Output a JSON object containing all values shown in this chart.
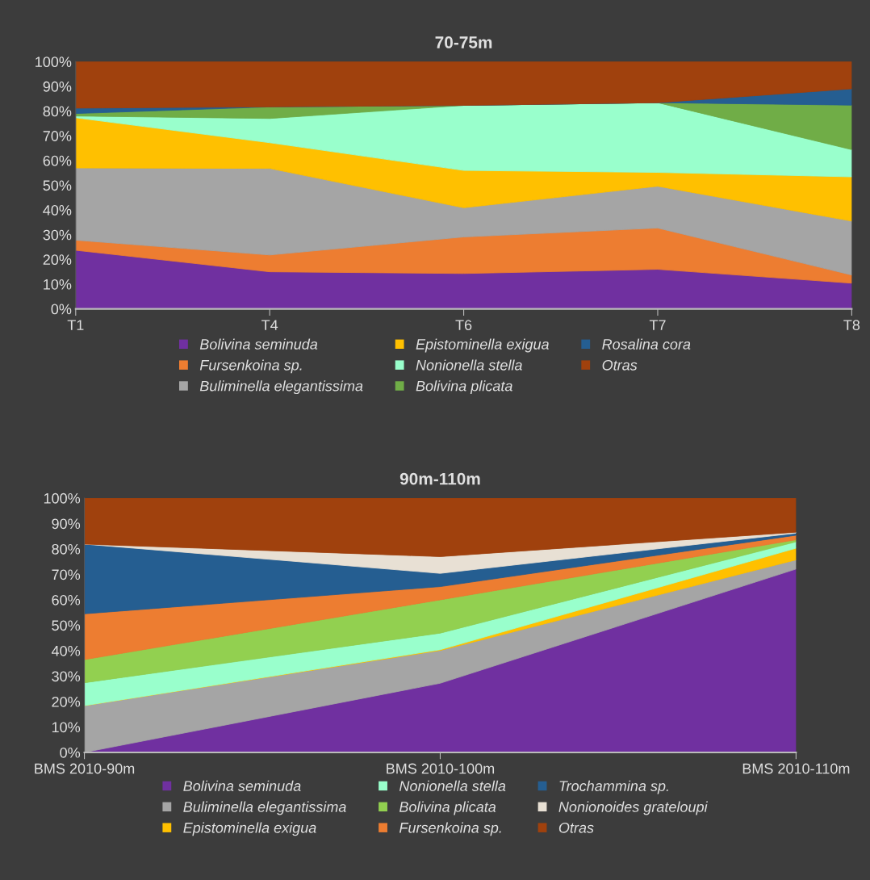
{
  "chart_data": [
    {
      "type": "area",
      "stacked": true,
      "title": "70-75m",
      "categories": [
        "T1",
        "T4",
        "T6",
        "T7",
        "T8"
      ],
      "ylim": [
        0,
        100
      ],
      "yticks": [
        {
          "value": 0,
          "label": "0%"
        },
        {
          "value": 10,
          "label": "10%"
        },
        {
          "value": 20,
          "label": "20%"
        },
        {
          "value": 30,
          "label": "30%"
        },
        {
          "value": 40,
          "label": "40%"
        },
        {
          "value": 50,
          "label": "50%"
        },
        {
          "value": 60,
          "label": "60%"
        },
        {
          "value": 70,
          "label": "70%"
        },
        {
          "value": 80,
          "label": "80%"
        },
        {
          "value": 90,
          "label": "90%"
        },
        {
          "value": 100,
          "label": "100%"
        }
      ],
      "legend": "bottom",
      "grid": false,
      "series": [
        {
          "name": "Bolivina seminuda",
          "color": "#7030a0",
          "values": [
            23.7,
            15.0,
            14.3,
            16.0,
            10.4
          ]
        },
        {
          "name": "Fursenkoina sp.",
          "color": "#ed7d31",
          "values": [
            4.1,
            6.8,
            14.8,
            16.7,
            3.3
          ]
        },
        {
          "name": "Buliminella elegantissima",
          "color": "#a5a5a5",
          "values": [
            29.2,
            35.0,
            11.8,
            16.9,
            21.8
          ]
        },
        {
          "name": "Epistominella exigua",
          "color": "#ffc000",
          "values": [
            20.3,
            10.4,
            15.1,
            5.6,
            17.9
          ]
        },
        {
          "name": "Nonionella stella",
          "color": "#99ffcc",
          "values": [
            0.7,
            9.8,
            26.3,
            28.2,
            11.0
          ]
        },
        {
          "name": "Bolivina plicata",
          "color": "#70ad47",
          "values": [
            1.0,
            4.7,
            0,
            0,
            18.0
          ]
        },
        {
          "name": "Rosalina cora",
          "color": "#255e91",
          "values": [
            2.2,
            0,
            0,
            0,
            6.6
          ]
        },
        {
          "name": "Otras",
          "color": "#a0410d",
          "values": [
            18.8,
            18.3,
            17.7,
            16.6,
            11.0
          ]
        }
      ]
    },
    {
      "type": "area",
      "stacked": true,
      "title": "90m-110m",
      "categories": [
        "BMS 2010-90m",
        "BMS 2010-100m",
        "BMS 2010-110m"
      ],
      "ylim": [
        0,
        100
      ],
      "yticks": [
        {
          "value": 0,
          "label": "0%"
        },
        {
          "value": 10,
          "label": "10%"
        },
        {
          "value": 20,
          "label": "20%"
        },
        {
          "value": 30,
          "label": "30%"
        },
        {
          "value": 40,
          "label": "40%"
        },
        {
          "value": 50,
          "label": "50%"
        },
        {
          "value": 60,
          "label": "60%"
        },
        {
          "value": 70,
          "label": "70%"
        },
        {
          "value": 80,
          "label": "80%"
        },
        {
          "value": 90,
          "label": "90%"
        },
        {
          "value": 100,
          "label": "100%"
        }
      ],
      "legend": "bottom",
      "grid": false,
      "series": [
        {
          "name": "Bolivina seminuda",
          "color": "#7030a0",
          "values": [
            0,
            27.2,
            72.1
          ]
        },
        {
          "name": "Buliminella elegantissima",
          "color": "#a5a5a5",
          "values": [
            18.4,
            12.9,
            3.6
          ]
        },
        {
          "name": "Epistominella exigua",
          "color": "#ffc000",
          "values": [
            0,
            0.3,
            4.6
          ]
        },
        {
          "name": "Nonionella stella",
          "color": "#99ffcc",
          "values": [
            9.0,
            6.5,
            2.5
          ]
        },
        {
          "name": "Bolivina plicata",
          "color": "#92d050",
          "values": [
            9.1,
            13.1,
            0.8
          ]
        },
        {
          "name": "Fursenkoina sp.",
          "color": "#ed7d31",
          "values": [
            18.0,
            5.2,
            1.8
          ]
        },
        {
          "name": "Trochammina sp.",
          "color": "#255e91",
          "values": [
            27.4,
            5.2,
            0.8
          ]
        },
        {
          "name": "Nonionoides grateloupi",
          "color": "#e8e0d4",
          "values": [
            0,
            6.6,
            0.4
          ]
        },
        {
          "name": "Otras",
          "color": "#a0410d",
          "values": [
            18.1,
            23.0,
            13.4
          ]
        }
      ]
    }
  ]
}
